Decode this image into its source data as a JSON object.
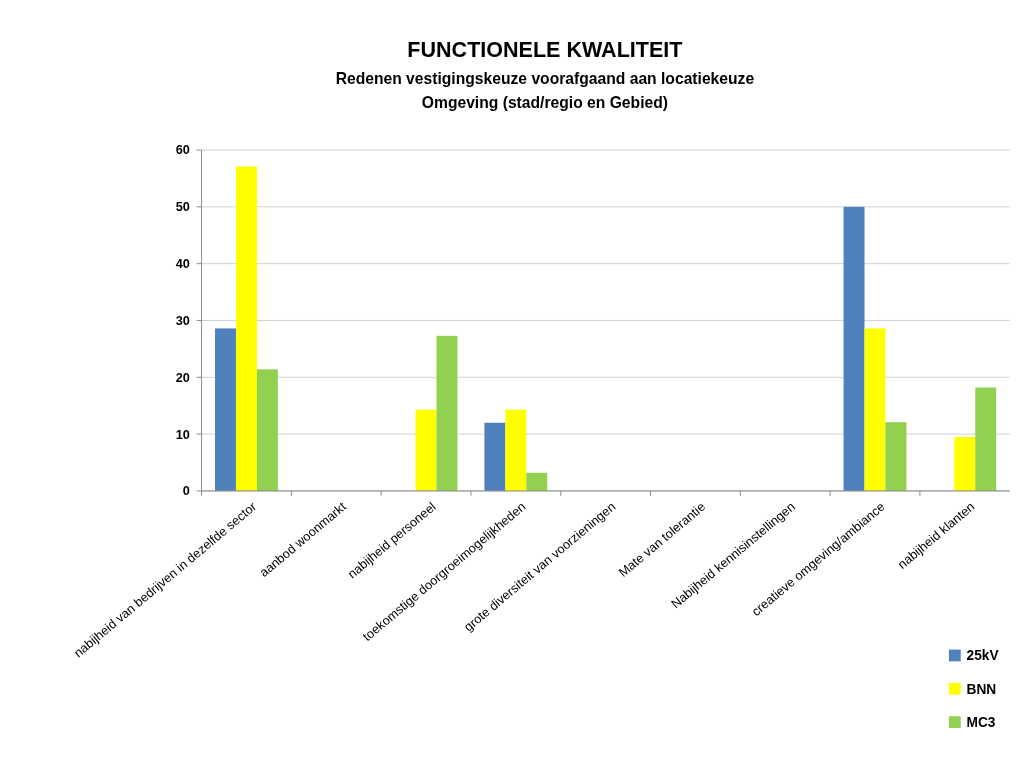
{
  "chart_data": {
    "type": "bar",
    "title": "FUNCTIONELE KWALITEIT",
    "subtitle": "Redenen vestigingskeuze voorafgaand aan locatiekeuze\nOmgeving (stad/regio en Gebied)",
    "categories": [
      "nabijheid van bedrijven in dezelfde sector",
      "aanbod woonmarkt",
      "nabijheid personeel",
      "toekomstige doorgroeimogelijkheden",
      "grote diversiteit van voorzieningen",
      "Mate van tolerantie",
      "Nabijheid kennisinstellingen",
      "creatieve omgeving/ambiance",
      "nabijheid klanten"
    ],
    "series": [
      {
        "name": "25kV",
        "color": "#4f81bd",
        "values": [
          28.6,
          0,
          0,
          12,
          0,
          0,
          0,
          50,
          0
        ]
      },
      {
        "name": "BNN",
        "color": "#ffff00",
        "values": [
          57.1,
          0,
          14.3,
          14.3,
          0,
          0,
          0,
          28.6,
          9.5
        ]
      },
      {
        "name": "MC3",
        "color": "#92d050",
        "values": [
          21.4,
          0,
          27.3,
          3.2,
          0,
          0,
          0,
          12.1,
          18.2
        ]
      }
    ],
    "ylim": [
      0,
      60
    ],
    "yticks": [
      0,
      10,
      20,
      30,
      40,
      50,
      60
    ],
    "grid": "y",
    "legend": "bottom right"
  }
}
